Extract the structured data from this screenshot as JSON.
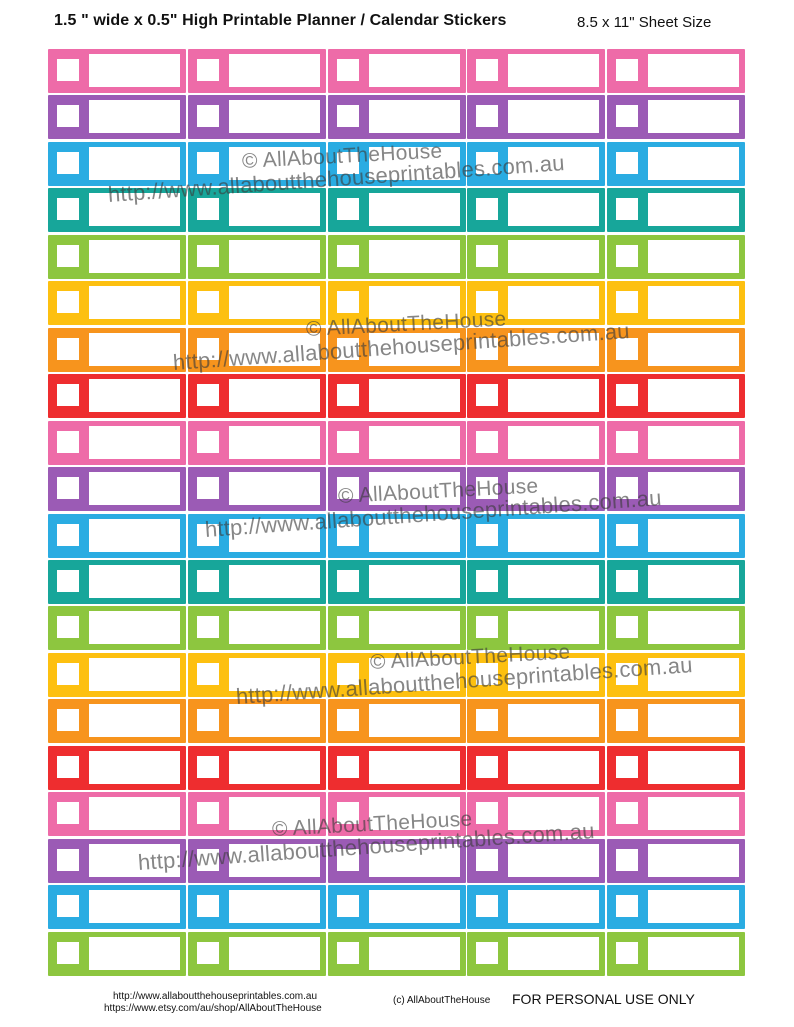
{
  "header": {
    "title": "1.5 \" wide x 0.5\" High Printable Planner / Calendar Stickers",
    "sheet_size": "8.5 x 11\" Sheet Size"
  },
  "sticker_sheet": {
    "columns": 5,
    "row_colors": [
      "#EE6BA8",
      "#9B5BB5",
      "#2AACE2",
      "#17A69A",
      "#8DC63F",
      "#FDC010",
      "#F7941D",
      "#EE2D2F",
      "#EE6BA8",
      "#9B5BB5",
      "#2AACE2",
      "#17A69A",
      "#8DC63F",
      "#FDC010",
      "#F7941D",
      "#EE2D2F",
      "#EE6BA8",
      "#9B5BB5",
      "#2AACE2",
      "#8DC63F"
    ]
  },
  "watermarks": [
    {
      "brand": "© AllAboutTheHouse",
      "url": "http://www.allaboutthehouseprintables.com.au"
    },
    {
      "brand": "© AllAboutTheHouse",
      "url": "http://www.allaboutthehouseprintables.com.au"
    },
    {
      "brand": "© AllAboutTheHouse",
      "url": "http://www.allaboutthehouseprintables.com.au"
    },
    {
      "brand": "© AllAboutTheHouse",
      "url": "http://www.allaboutthehouseprintables.com.au"
    },
    {
      "brand": "© AllAboutTheHouse",
      "url": "http://www.allaboutthehouseprintables.com.au"
    }
  ],
  "footer": {
    "website": "http://www.allaboutthehouseprintables.com.au",
    "etsy": "https://www.etsy.com/au/shop/AllAboutTheHouse",
    "copyright": "(c) AllAboutTheHouse",
    "license": "FOR PERSONAL USE ONLY"
  }
}
